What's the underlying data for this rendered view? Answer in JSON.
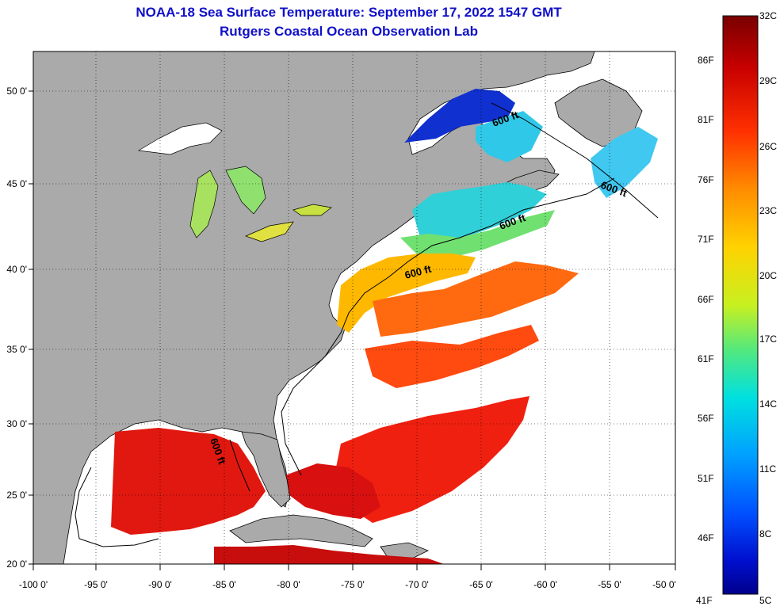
{
  "title_line1": "NOAA-18 Sea Surface Temperature:  September 17, 2022 1547 GMT",
  "title_line2": "Rutgers Coastal Ocean Observation Lab",
  "map": {
    "lon_labels": [
      "-100 0'",
      "-95 0'",
      "-90 0'",
      "-85 0'",
      "-80 0'",
      "-75 0'",
      "-70 0'",
      "-65 0'",
      "-60 0'",
      "-55 0'",
      "-50 0'"
    ],
    "lat_labels": [
      "50 0'",
      "45 0'",
      "40 0'",
      "35 0'",
      "30 0'",
      "25 0'",
      "20 0'"
    ],
    "contour_label": "600 ft",
    "colors": {
      "land": "#aaaaaa",
      "no_data": "#ffffff",
      "coast": "#000000"
    }
  },
  "colorbar": {
    "celsius_labels": [
      "32C",
      "29C",
      "26C",
      "23C",
      "20C",
      "17C",
      "14C",
      "11C",
      "8C",
      "5C"
    ],
    "fahrenheit_labels": [
      "86F",
      "81F",
      "76F",
      "71F",
      "66F",
      "61F",
      "56F",
      "51F",
      "46F",
      "41F"
    ],
    "colors_top_to_bottom": [
      "#7a0000",
      "#c80000",
      "#ff3000",
      "#ff8c00",
      "#ffd200",
      "#c8f020",
      "#50e880",
      "#00e0e0",
      "#00a0ff",
      "#0050ff",
      "#0010d0",
      "#00008c"
    ]
  }
}
